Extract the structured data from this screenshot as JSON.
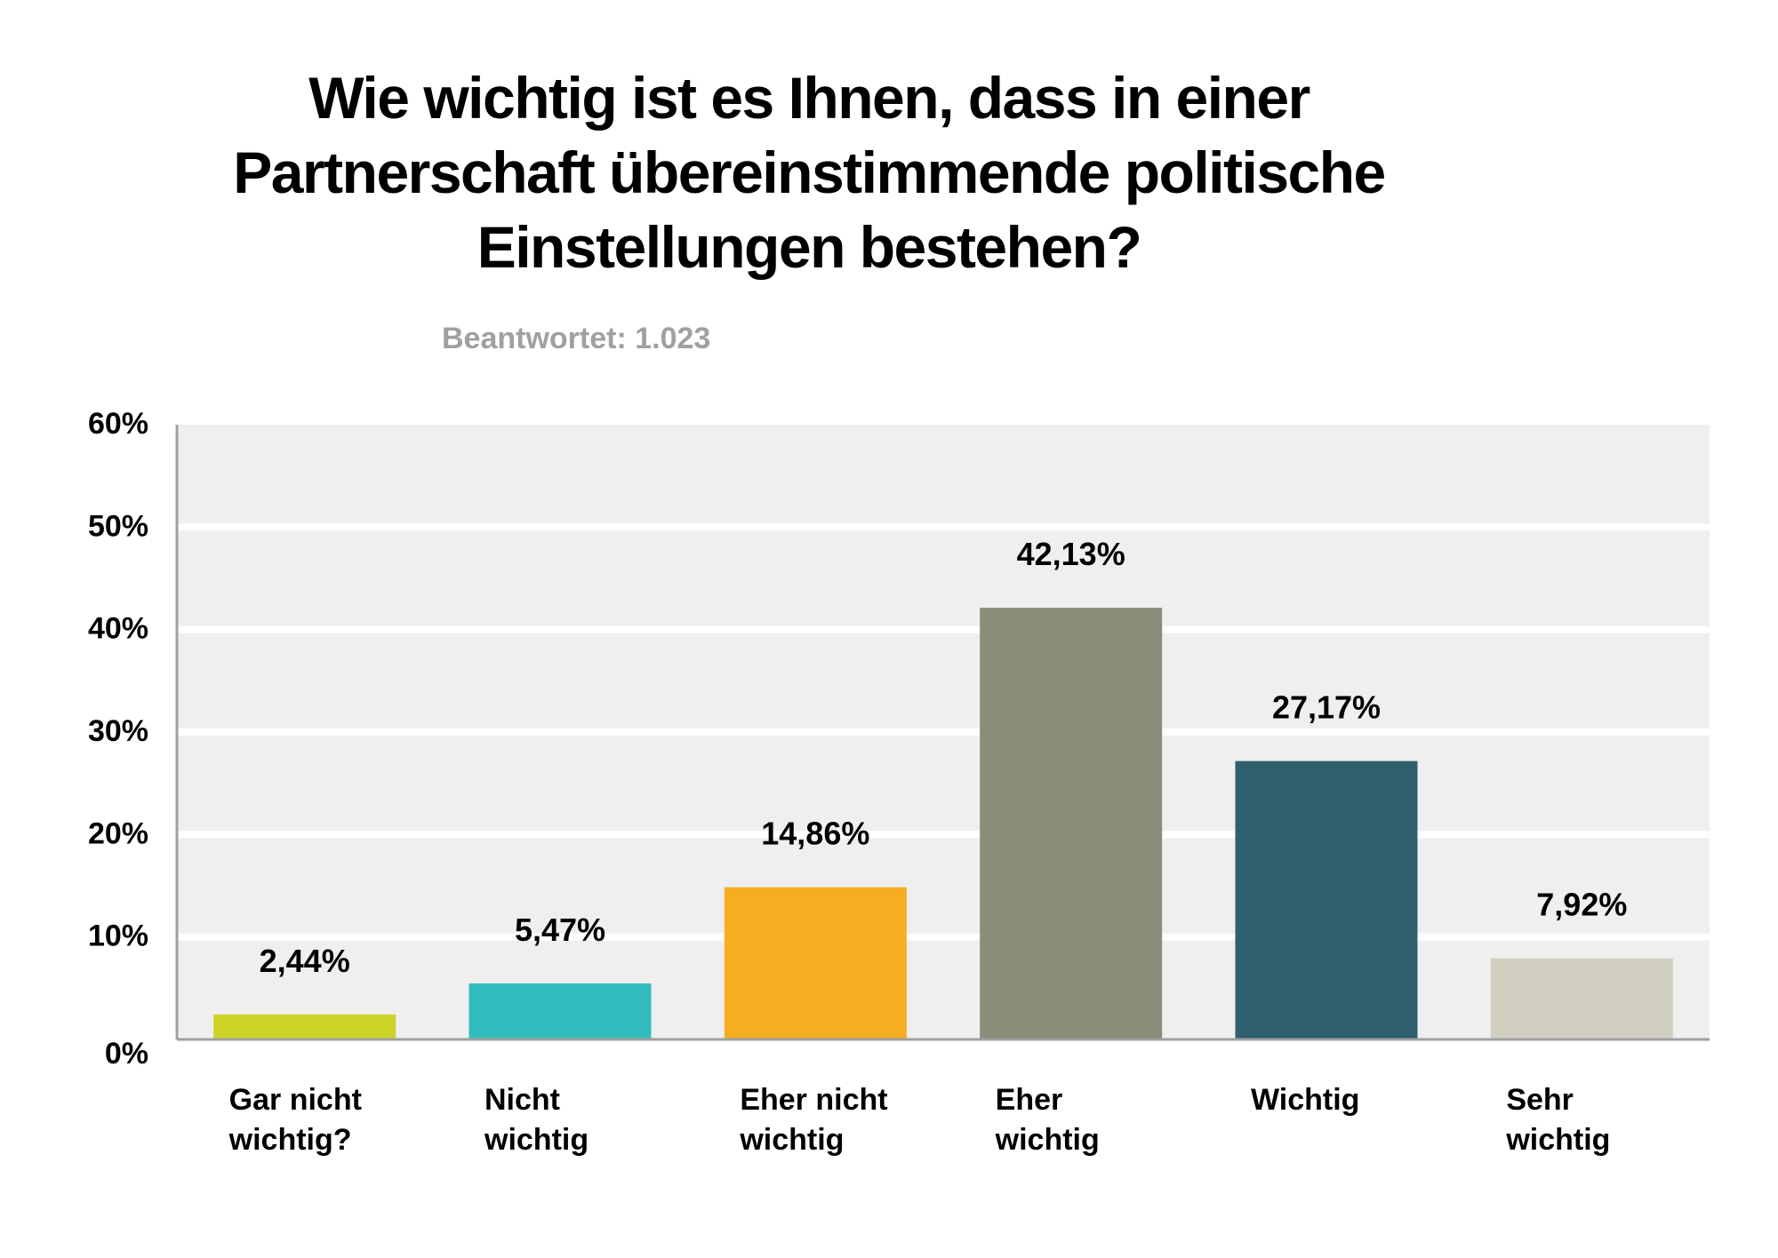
{
  "chart_data": {
    "type": "bar",
    "title": "Wie wichtig ist es Ihnen, dass in einer Partnerschaft übereinstimmende politische Einstellungen bestehen?",
    "title_lines": [
      "Wie wichtig ist es Ihnen, dass in einer",
      "Partnerschaft übereinstimmende politische",
      "Einstellungen bestehen?"
    ],
    "subtitle": "Beantwortet: 1.023",
    "categories": [
      [
        "Gar nicht",
        "wichtig?"
      ],
      [
        "Nicht",
        "wichtig"
      ],
      [
        "Eher nicht",
        "wichtig"
      ],
      [
        "Eher",
        "wichtig"
      ],
      [
        "Wichtig"
      ],
      [
        "Sehr",
        "wichtig"
      ]
    ],
    "values": [
      2.44,
      5.47,
      14.86,
      42.13,
      27.17,
      7.92
    ],
    "data_labels": [
      "2,44%",
      "5,47%",
      "14,86%",
      "42,13%",
      "27,17%",
      "7,92%"
    ],
    "colors": [
      "#cdd325",
      "#33bcbd",
      "#f5ae20",
      "#8b8c7a",
      "#2e606e",
      "#d0cfc0"
    ],
    "ylim": [
      0,
      60
    ],
    "yticks": [
      "0%",
      "10%",
      "20%",
      "30%",
      "40%",
      "50%",
      "60%"
    ],
    "grid": true,
    "plot_background": "#efefef",
    "xlabel": "",
    "ylabel": ""
  }
}
